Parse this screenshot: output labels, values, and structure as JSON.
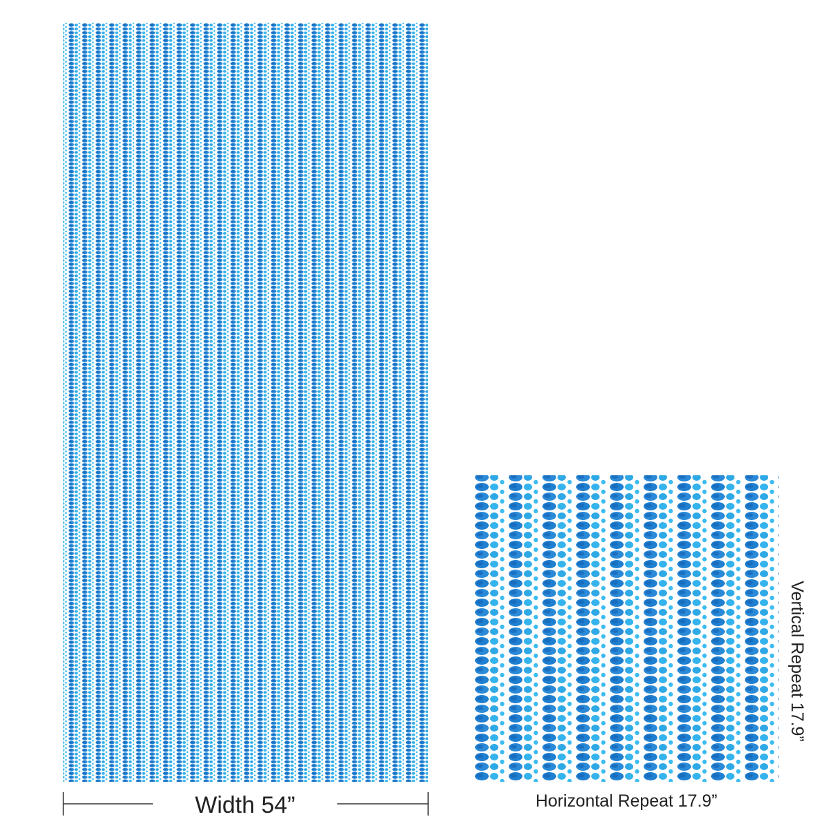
{
  "width_label": "Width 54”",
  "horizontal_repeat_label": "Horizontal Repeat 17.9”",
  "vertical_repeat_label": "Vertical Repeat 17.9”"
}
